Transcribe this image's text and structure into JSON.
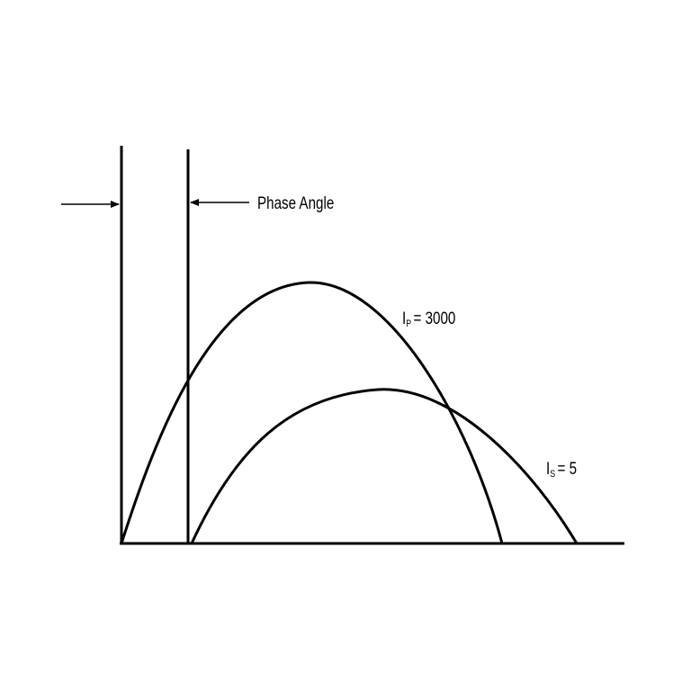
{
  "labels": {
    "phase_angle": "Phase Angle",
    "primary_symbol": "I",
    "primary_subscript": "P",
    "primary_value": "= 3000",
    "secondary_symbol": "I",
    "secondary_subscript": "S",
    "secondary_value": "= 5"
  },
  "colors": {
    "stroke": "#000000",
    "background": "#ffffff"
  }
}
